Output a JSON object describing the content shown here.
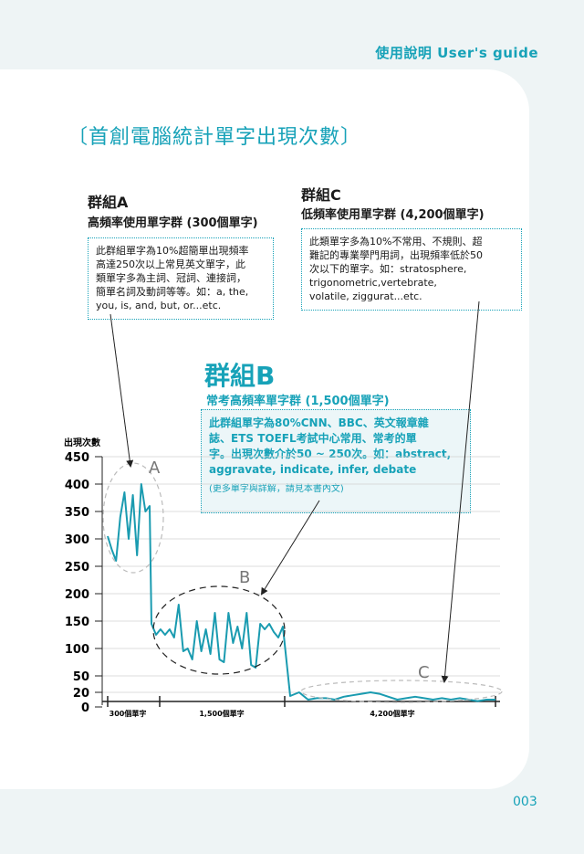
{
  "header": "使用說明 User's guide",
  "title": "〔首創電腦統計單字出現次數〕",
  "groupA": {
    "title": "群組A",
    "subtitle": "高頻率使用單字群 (300個單字)",
    "desc": [
      "此群組單字為10%超簡單出現頻率",
      "高達250次以上常見英文單字，此",
      "類單字多為主詞、冠詞、連接詞，",
      "簡單名詞及動詞等等。如：a, the,",
      "you, is, and, but, or...etc."
    ]
  },
  "groupC": {
    "title": "群組C",
    "subtitle": "低頻率使用單字群 (4,200個單字)",
    "desc": [
      "此類單字多為10%不常用、不規則、超",
      "難記的專業學門用詞，出現頻率低於50",
      "次以下的單字。如：stratosphere,",
      "trigonometric,vertebrate,",
      "volatile, ziggurat...etc."
    ]
  },
  "groupB": {
    "title": "群組B",
    "subtitle": "常考高頻率單字群 (1,500個單字)",
    "desc": [
      "此群組單字為80%CNN、BBC、英文報章雜",
      "誌、ETS TOEFL考試中心常用、常考的單",
      "字。出現次數介於50 ~ 250次。如：abstract,",
      "aggravate, indicate, infer, debate"
    ],
    "note": "(更多單字與詳解，請見本書內文)"
  },
  "chart_data": {
    "type": "line",
    "ylabel": "出現次數",
    "ylim": [
      0,
      450
    ],
    "yticks": [
      "450",
      "400",
      "350",
      "300",
      "250",
      "200",
      "150",
      "100",
      "50",
      "20",
      "0"
    ],
    "segments": [
      "300個單字",
      "1,500個單字",
      "4,200個單字"
    ],
    "region_labels": [
      "A",
      "B",
      "C"
    ],
    "series": [
      {
        "color": "#1a9bb0",
        "values": [
          305,
          280,
          260,
          340,
          385,
          300,
          380,
          270,
          400,
          350,
          360,
          145,
          125,
          135,
          125,
          135,
          120,
          180,
          95,
          100,
          80,
          150,
          95,
          135,
          90,
          165,
          80,
          75,
          165,
          110,
          140,
          100,
          165,
          70,
          65,
          145,
          135,
          145,
          130,
          120,
          140,
          15,
          20,
          10,
          12,
          12,
          10,
          14,
          16,
          18,
          20,
          18,
          14,
          10,
          12,
          14,
          12,
          10,
          12,
          10,
          12,
          10,
          8,
          10,
          10
        ]
      }
    ]
  },
  "page_number": "003"
}
